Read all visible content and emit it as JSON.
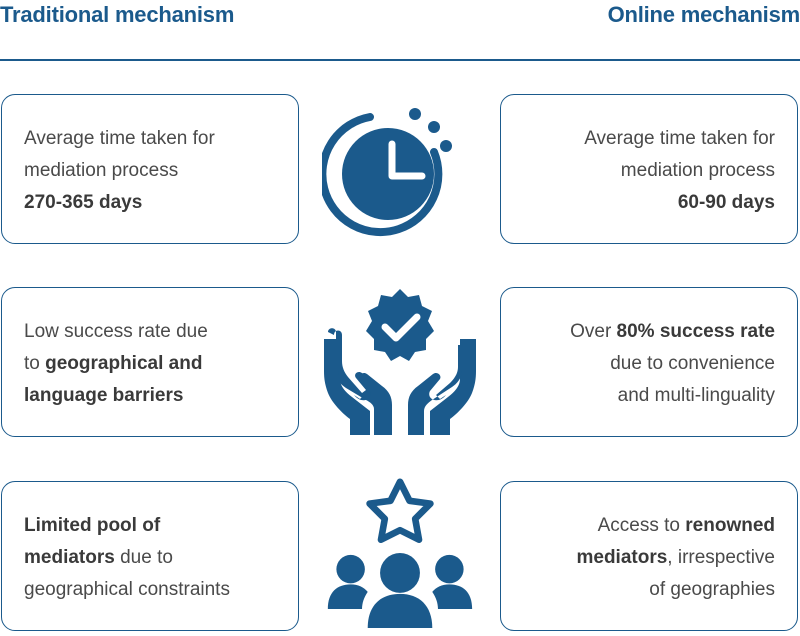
{
  "headers": {
    "left": "Traditional mechanism",
    "right": "Online mechanism"
  },
  "rows": [
    {
      "icon": "clock-icon",
      "left": {
        "line1": "Average time taken for",
        "line2": "mediation process",
        "line3_bold": "270-365 days"
      },
      "right": {
        "line1": "Average time taken for",
        "line2": "mediation process",
        "line3_bold": "60-90 days"
      }
    },
    {
      "icon": "hands-badge-check-icon",
      "left": {
        "line1": "Low success rate due",
        "line2_pre": "to ",
        "line2_bold": "geographical and",
        "line3_bold": "language barriers"
      },
      "right": {
        "line1_pre": "Over ",
        "line1_bold": "80% success rate",
        "line2": "due to convenience",
        "line3": "and multi-linguality"
      }
    },
    {
      "icon": "group-star-icon",
      "left": {
        "line1_bold": "Limited pool of",
        "line2_bold": "mediators",
        "line2_post": " due to",
        "line3": "geographical constraints"
      },
      "right": {
        "line1_pre": "Access to ",
        "line1_bold": "renowned",
        "line2_bold": "mediators",
        "line2_post": ", irrespective",
        "line3": "of geographies"
      }
    }
  ],
  "colors": {
    "accent": "#1b5a8c",
    "text": "#4a4a4a"
  }
}
